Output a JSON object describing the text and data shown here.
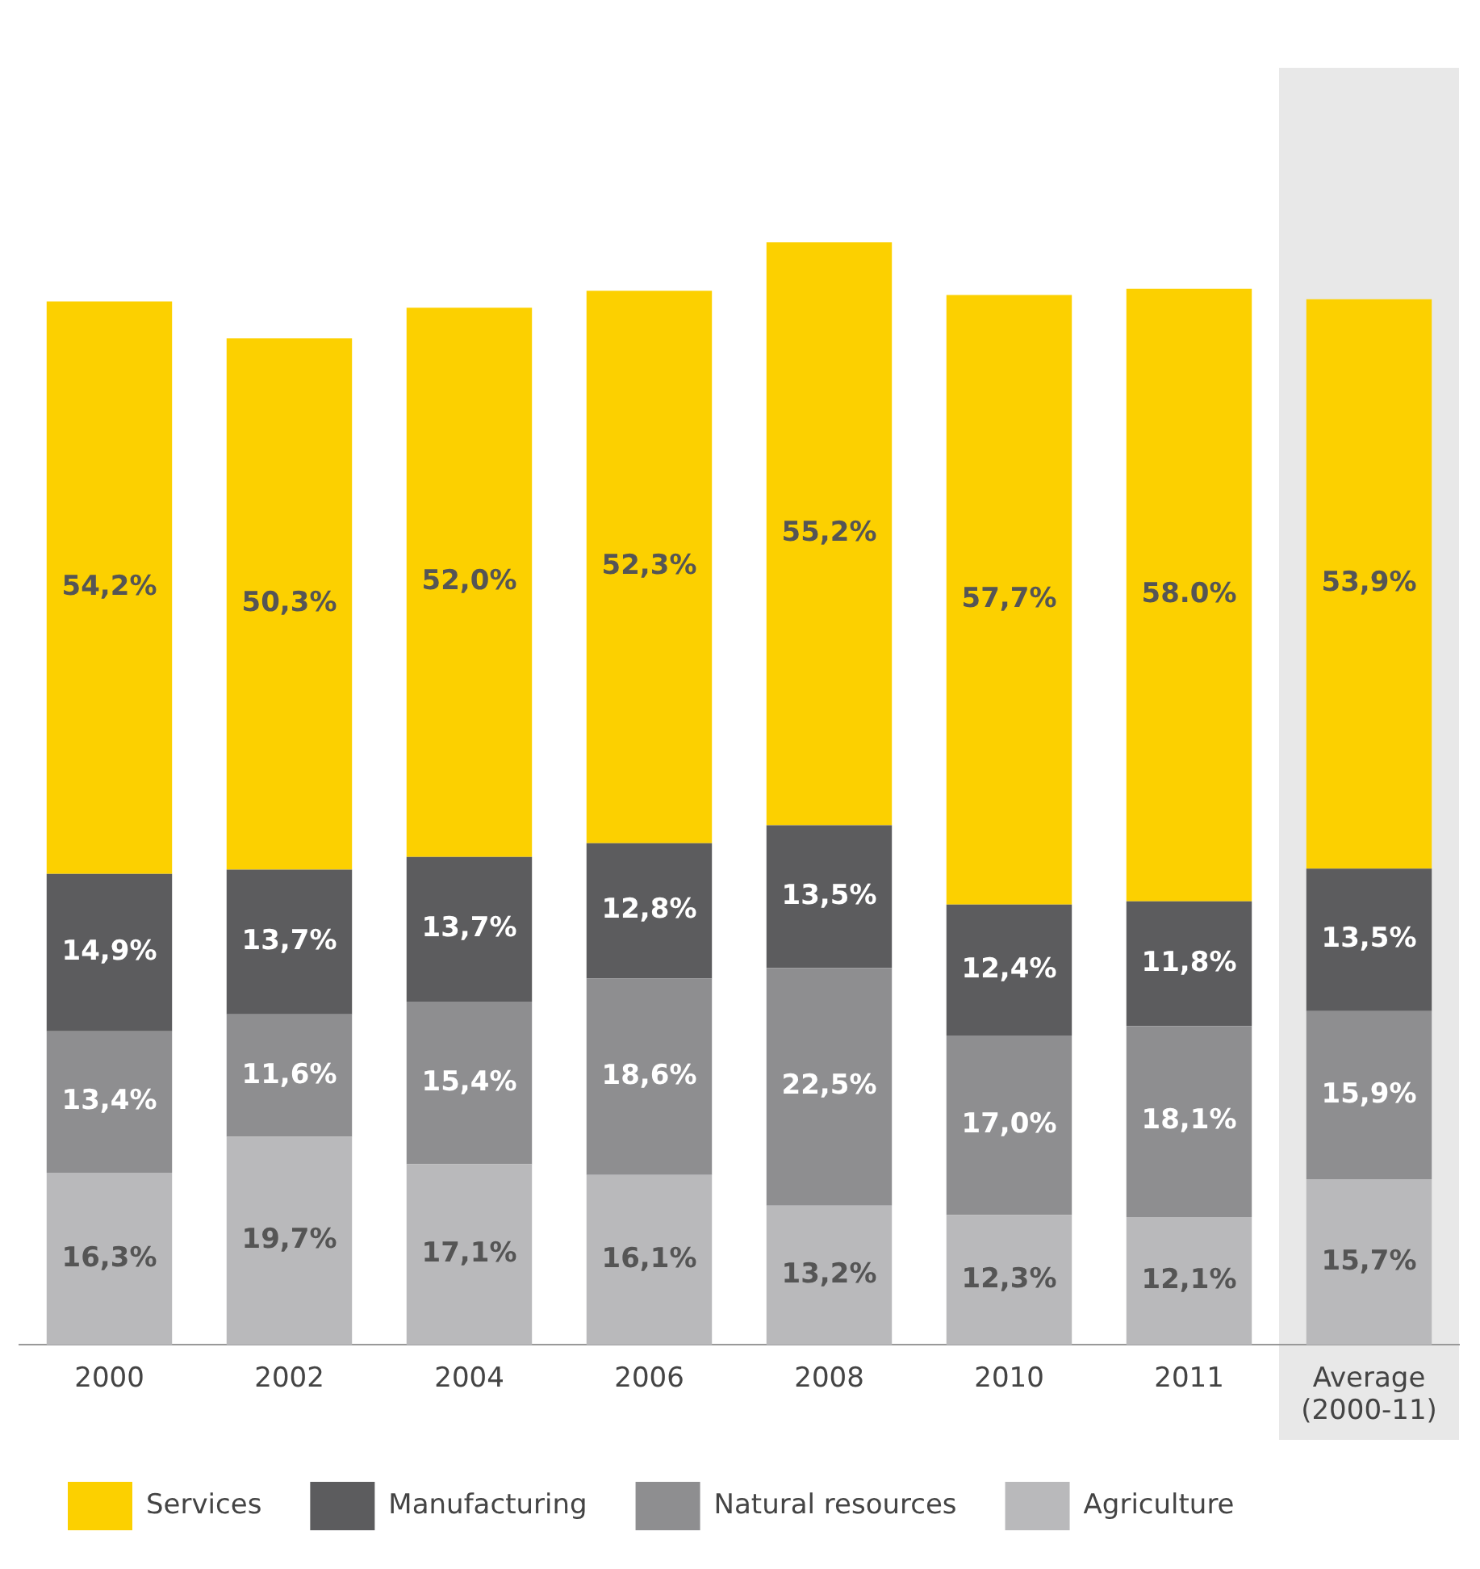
{
  "chart_data": {
    "type": "bar",
    "stacked": true,
    "categories": [
      "2000",
      "2002",
      "2004",
      "2006",
      "2008",
      "2010",
      "2011",
      "Average (2000-11)"
    ],
    "series": [
      {
        "name": "Agriculture",
        "color": "#b9b9bb",
        "values": [
          16.3,
          19.7,
          17.1,
          16.1,
          13.2,
          12.3,
          12.1,
          15.7
        ],
        "value_labels": [
          "16,3%",
          "19,7%",
          "17,1%",
          "16,1%",
          "13,2%",
          "12,3%",
          "12,1%",
          "15,7%"
        ]
      },
      {
        "name": "Natural resources",
        "color": "#8e8e90",
        "values": [
          13.4,
          11.6,
          15.4,
          18.6,
          22.5,
          17.0,
          18.1,
          15.9
        ],
        "value_labels": [
          "13,4%",
          "11,6%",
          "15,4%",
          "18,6%",
          "22,5%",
          "17,0%",
          "18,1%",
          "15,9%"
        ]
      },
      {
        "name": "Manufacturing",
        "color": "#5c5c5e",
        "values": [
          14.9,
          13.7,
          13.7,
          12.8,
          13.5,
          12.4,
          11.8,
          13.5
        ],
        "value_labels": [
          "14,9%",
          "13,7%",
          "13,7%",
          "12,8%",
          "13,5%",
          "12,4%",
          "11,8%",
          "13,5%"
        ]
      },
      {
        "name": "Services",
        "color": "#fcd000",
        "values": [
          54.2,
          50.3,
          52.0,
          52.3,
          55.2,
          57.7,
          58.0,
          53.9
        ],
        "value_labels": [
          "54,2%",
          "50,3%",
          "52,0%",
          "52,3%",
          "55,2%",
          "57,7%",
          "58.0%",
          "53,9%"
        ]
      }
    ],
    "bands": [
      {
        "axis": "x",
        "from": "Average (2000-11)",
        "to": "Average (2000-11)",
        "color": "#e8e8e8"
      }
    ],
    "legend": "bottom",
    "grid": false,
    "tick_labels": "x"
  }
}
